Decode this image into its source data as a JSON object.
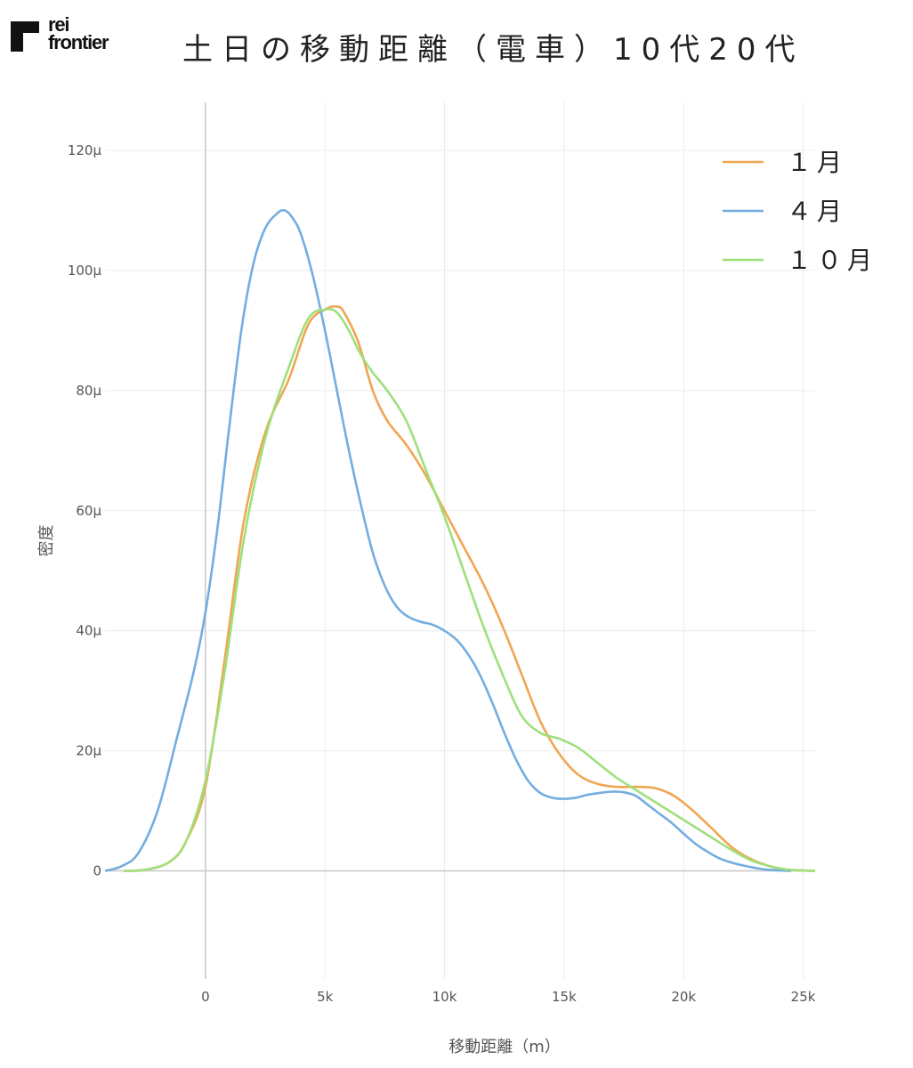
{
  "brand": {
    "line1": "rei",
    "line2": "frontier"
  },
  "chart_data": {
    "type": "line",
    "title": "土日の移動距離（電車）10代20代",
    "xlabel": "移動距離（m）",
    "ylabel": "密度",
    "xlim": [
      -4200,
      25500
    ],
    "ylim": [
      -18,
      128
    ],
    "x_ticks": [
      0,
      5000,
      10000,
      15000,
      20000,
      25000
    ],
    "x_tick_labels": [
      "0",
      "5k",
      "10k",
      "15k",
      "20k",
      "25k"
    ],
    "y_ticks": [
      0,
      20,
      40,
      60,
      80,
      100,
      120
    ],
    "y_tick_labels": [
      "0",
      "20μ",
      "40μ",
      "60μ",
      "80μ",
      "100μ",
      "120μ"
    ],
    "grid": true,
    "legend": "top-right",
    "series": [
      {
        "name": "１月",
        "color": "#f0a652",
        "x": [
          -3400,
          -2500,
          -1500,
          -800,
          0,
          800,
          1600,
          2500,
          3500,
          4300,
          5000,
          5500,
          5800,
          6400,
          7000,
          7600,
          8400,
          9200,
          10000,
          10800,
          11600,
          12400,
          13200,
          14000,
          14800,
          15600,
          16400,
          17200,
          18000,
          18800,
          19600,
          20400,
          21200,
          22000,
          22800,
          23600,
          24400,
          25500
        ],
        "y": [
          0,
          0.2,
          1.5,
          5,
          14,
          35,
          58,
          73,
          82,
          91,
          93.5,
          94,
          93,
          88,
          80,
          75,
          71,
          66,
          60,
          54,
          48,
          41,
          33,
          25,
          19.5,
          16,
          14.5,
          14,
          14,
          13.8,
          12.5,
          10,
          7,
          4,
          2,
          0.8,
          0.2,
          0
        ]
      },
      {
        "name": "４月",
        "color": "#74ade0",
        "x": [
          -4200,
          -3500,
          -2800,
          -2000,
          -1200,
          -500,
          0,
          500,
          1000,
          1500,
          2000,
          2500,
          3000,
          3300,
          3600,
          4000,
          4500,
          5000,
          5500,
          6000,
          6500,
          7000,
          7500,
          8000,
          8500,
          9000,
          9500,
          10000,
          10500,
          11000,
          11500,
          12000,
          12500,
          13000,
          13500,
          14000,
          14500,
          15000,
          15500,
          16000,
          16500,
          17000,
          17500,
          18000,
          18500,
          19000,
          19500,
          20000,
          20500,
          21000,
          21500,
          22000,
          22500,
          23000,
          23500,
          24500
        ],
        "y": [
          0,
          0.8,
          3,
          10,
          22,
          33,
          43,
          57,
          74,
          90,
          101,
          107,
          109.5,
          110,
          109,
          106,
          99,
          90,
          80,
          70,
          61,
          53,
          47.5,
          44,
          42.3,
          41.5,
          41,
          40,
          38.5,
          36,
          32.5,
          28,
          23,
          18.5,
          15,
          13,
          12.2,
          12,
          12.2,
          12.7,
          13,
          13.2,
          13.1,
          12.5,
          11,
          9.5,
          8,
          6.2,
          4.5,
          3.2,
          2.1,
          1.4,
          0.9,
          0.5,
          0.2,
          0
        ]
      },
      {
        "name": "１０月",
        "color": "#9ee07b",
        "x": [
          -3400,
          -2500,
          -1500,
          -800,
          0,
          800,
          1600,
          2500,
          3500,
          4300,
          5000,
          5500,
          6000,
          6500,
          7000,
          7600,
          8400,
          9200,
          10000,
          10800,
          11600,
          12400,
          13200,
          14000,
          14800,
          15600,
          16400,
          17200,
          18000,
          18800,
          19600,
          20400,
          21200,
          22000,
          22800,
          23600,
          24400,
          25500
        ],
        "y": [
          0,
          0.2,
          1.5,
          5,
          15,
          33,
          55,
          72,
          84,
          92,
          93.5,
          93,
          90,
          86,
          83,
          80,
          75,
          67,
          59,
          50,
          41,
          33,
          26,
          23,
          22,
          20.5,
          18,
          15.5,
          13.5,
          11.5,
          9.5,
          7.5,
          5.5,
          3.5,
          1.8,
          0.8,
          0.2,
          0
        ]
      }
    ]
  }
}
